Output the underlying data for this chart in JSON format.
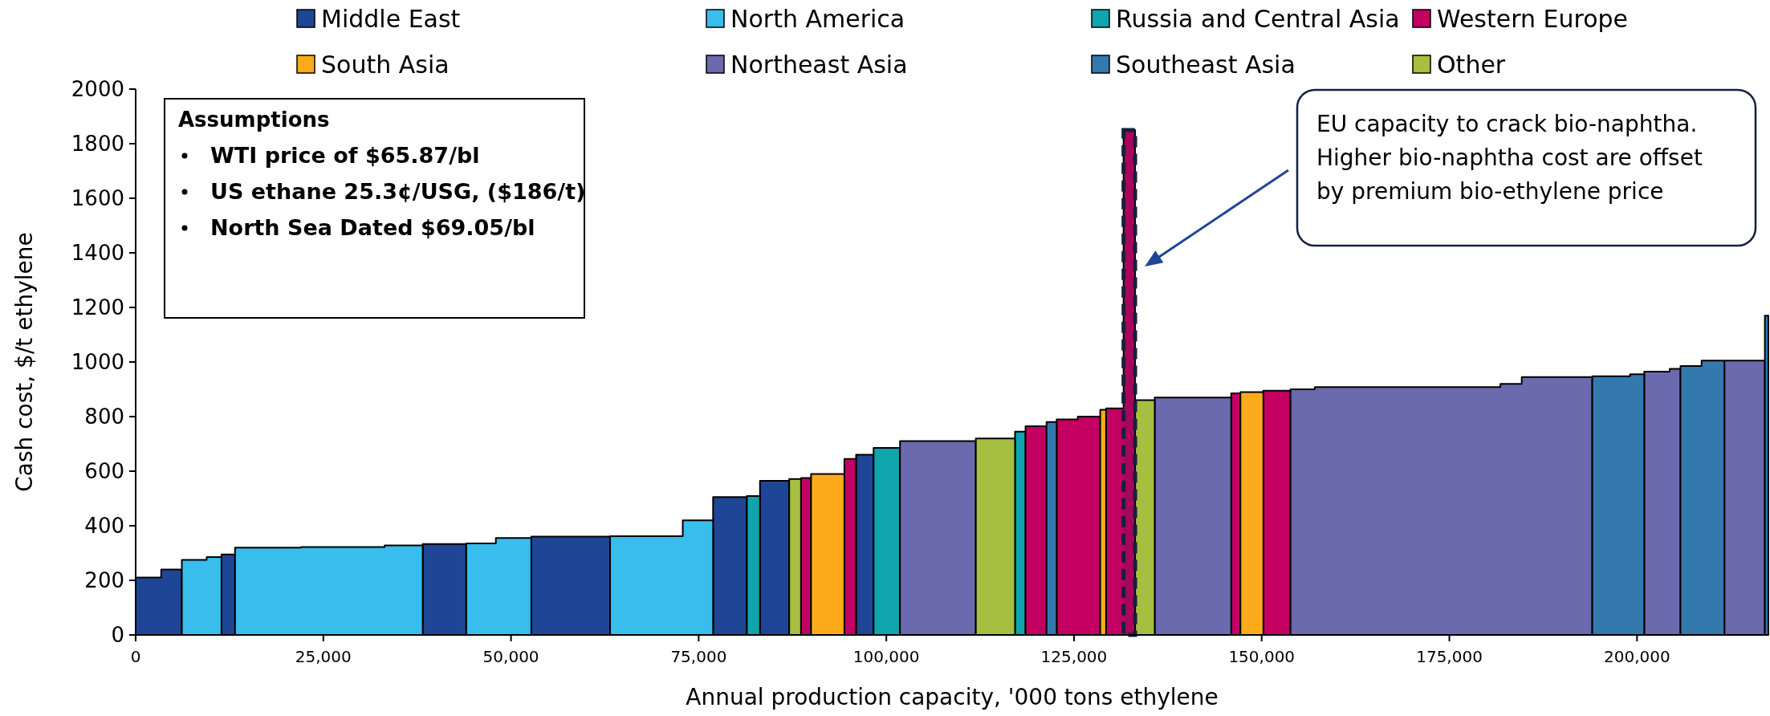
{
  "chart_data": {
    "type": "area",
    "xlabel": "Annual production capacity, '000 tons ethylene",
    "ylabel": "Cash cost, $/t ethylene",
    "xlim": [
      0,
      217500
    ],
    "xticks": [
      0,
      {
        "value": 25000,
        "label": "25,000"
      },
      {
        "value": 50000,
        "label": "50,000"
      },
      {
        "value": 75000,
        "label": "75,000"
      },
      {
        "value": 100000,
        "label": "100,000"
      },
      {
        "value": 125000,
        "label": "125,000"
      },
      {
        "value": 150000,
        "label": "150,000"
      },
      {
        "value": 175000,
        "label": "175,000"
      },
      {
        "value": 200000,
        "label": "200,000"
      }
    ],
    "ylim": [
      0,
      2000
    ],
    "yticks": [
      0,
      200,
      400,
      600,
      800,
      1000,
      1200,
      1400,
      1600,
      1800,
      2000
    ],
    "legend": "top",
    "series": [
      {
        "name": "Middle East",
        "color": "#1f4696",
        "x": [
          0,
          3400,
          3400,
          6150,
          null,
          11430,
          13240,
          null,
          38240,
          44040,
          null,
          52700,
          63200,
          null,
          76920,
          81420,
          null,
          83170,
          87060,
          null,
          95970,
          98300
        ],
        "values": [
          210,
          210,
          240,
          240,
          null,
          295,
          295,
          null,
          333,
          333,
          null,
          360,
          360,
          null,
          505,
          505,
          null,
          565,
          565,
          null,
          660,
          660
        ]
      },
      {
        "name": "North America",
        "color": "#38bdec",
        "x": [
          6150,
          9460,
          9460,
          11430,
          null,
          13240,
          22040,
          22040,
          33170,
          33170,
          38240,
          null,
          44040,
          47980,
          47980,
          52700,
          null,
          63200,
          72880,
          72880,
          76920
        ],
        "values": [
          275,
          275,
          285,
          285,
          null,
          320,
          320,
          322,
          322,
          328,
          328,
          null,
          335,
          335,
          355,
          355,
          null,
          362,
          362,
          420,
          420
        ]
      },
      {
        "name": "Russia and Central Asia",
        "color": "#0fa5ad",
        "x": [
          81420,
          83170,
          null,
          98300,
          101820,
          null,
          117140,
          118540
        ],
        "values": [
          509,
          509,
          null,
          685,
          685,
          null,
          745,
          745
        ]
      },
      {
        "name": "Western Europe",
        "color": "#c30062",
        "x": [
          88630,
          89970,
          null,
          94410,
          95970,
          null,
          118540,
          121340,
          null,
          122690,
          125500,
          125500,
          128490,
          null,
          129270,
          131600,
          131600,
          133140,
          null,
          145940,
          147170,
          null,
          150220,
          153840
        ],
        "values": [
          575,
          575,
          null,
          645,
          645,
          null,
          765,
          765,
          null,
          790,
          790,
          800,
          800,
          null,
          830,
          830,
          1850,
          1850,
          null,
          885,
          885,
          null,
          895,
          895
        ]
      },
      {
        "name": "South Asia",
        "color": "#fdab1d",
        "x": [
          89970,
          94410,
          null,
          128490,
          129270,
          null,
          147170,
          150220
        ],
        "values": [
          590,
          590,
          null,
          825,
          825,
          null,
          890,
          890
        ]
      },
      {
        "name": "Northeast Asia",
        "color": "#6b6aae",
        "x": [
          101820,
          111920,
          null,
          135750,
          145940,
          null,
          153840,
          157070,
          157070,
          181800,
          181800,
          184640,
          184640,
          194040,
          null,
          200960,
          204350,
          204350,
          205790,
          null,
          211640,
          217030
        ],
        "values": [
          710,
          710,
          null,
          870,
          870,
          null,
          900,
          900,
          908,
          908,
          920,
          920,
          945,
          945,
          null,
          965,
          965,
          975,
          975,
          null,
          1005,
          1005
        ]
      },
      {
        "name": "Southeast Asia",
        "color": "#3479ae",
        "x": [
          121340,
          122690,
          null,
          194040,
          199070,
          199070,
          200960,
          null,
          205790,
          208600,
          208600,
          211640,
          null,
          217030,
          217500
        ],
        "values": [
          780,
          780,
          null,
          948,
          948,
          955,
          955,
          null,
          985,
          985,
          1005,
          1005,
          null,
          1170,
          1170
        ]
      },
      {
        "name": "Other",
        "color": "#a6bf40",
        "x": [
          87060,
          88630,
          null,
          111920,
          117140,
          null,
          133140,
          135750
        ],
        "values": [
          571,
          571,
          null,
          720,
          720,
          null,
          860,
          860
        ]
      }
    ],
    "bands": [
      {
        "axis": "x",
        "from": 131600,
        "to": 133140,
        "color": "#14213d"
      }
    ],
    "annotations": [
      "Assumptions",
      "WTI price of $65.87/bl",
      "US ethane 25.3¢/USG, ($186/t)",
      "North Sea Dated $69.05/bl",
      "EU capacity to crack bio-naphtha. Higher bio-naphtha cost are offset by premium bio-ethylene price"
    ]
  }
}
